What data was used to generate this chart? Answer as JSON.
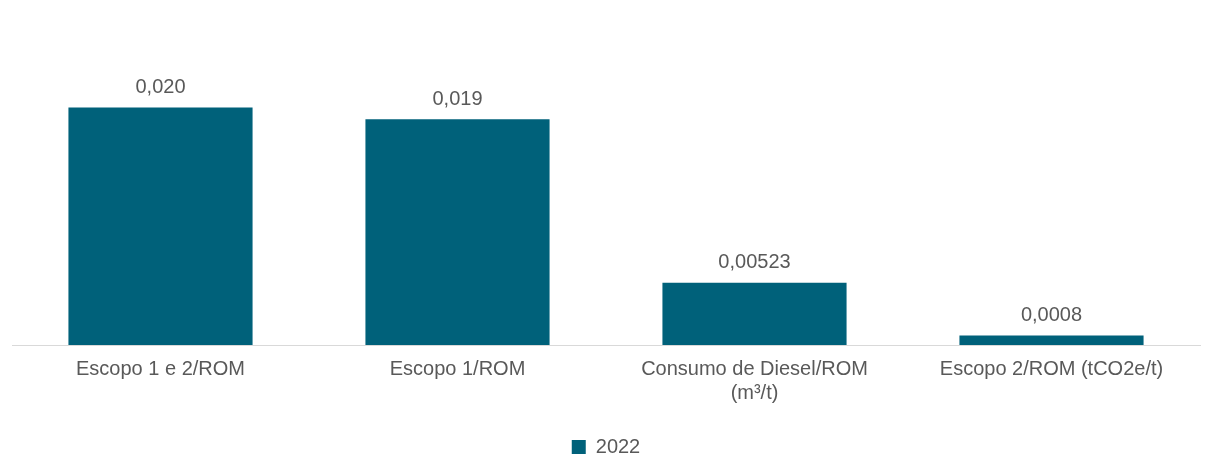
{
  "chart_data": {
    "type": "bar",
    "categories": [
      "Escopo 1 e 2/ROM",
      "Escopo 1/ROM",
      "Consumo de Diesel/ROM (m³/t)",
      "Escopo 2/ROM (tCO2e/t)"
    ],
    "series": [
      {
        "name": "2022",
        "color": "#00617a",
        "values": [
          0.02,
          0.019,
          0.00523,
          0.0008
        ],
        "value_labels": [
          "0,020",
          "0,019",
          "0,00523",
          "0,0008"
        ]
      }
    ],
    "legend": "bottom",
    "grid": false
  }
}
